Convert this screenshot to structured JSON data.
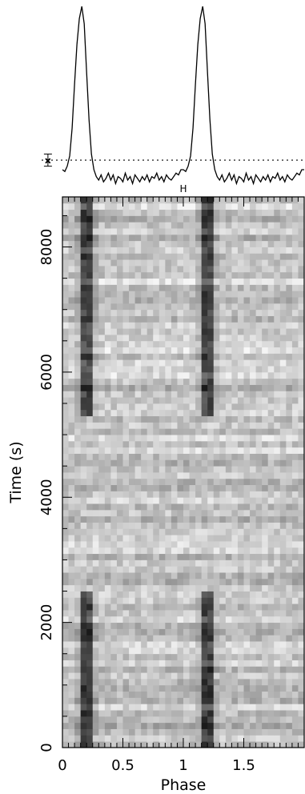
{
  "chart_data": [
    {
      "type": "line",
      "title": "",
      "description_of_axes": "",
      "x_range": [
        0,
        2
      ],
      "series": [
        {
          "x": [
            0.0,
            0.02,
            0.04,
            0.06,
            0.08,
            0.1,
            0.12,
            0.14,
            0.16,
            0.18,
            0.2,
            0.22,
            0.24,
            0.26,
            0.28,
            0.3,
            0.32,
            0.34,
            0.36,
            0.38,
            0.4,
            0.42,
            0.44,
            0.46,
            0.48,
            0.5,
            0.52,
            0.54,
            0.56,
            0.58,
            0.6,
            0.62,
            0.64,
            0.66,
            0.68,
            0.7,
            0.72,
            0.74,
            0.76,
            0.78,
            0.8,
            0.82,
            0.84,
            0.86,
            0.88,
            0.9,
            0.92,
            0.94,
            0.96,
            0.98,
            1.0,
            1.02,
            1.04,
            1.06,
            1.08,
            1.1,
            1.12,
            1.14,
            1.16,
            1.18,
            1.2,
            1.22,
            1.24,
            1.26,
            1.28,
            1.3,
            1.32,
            1.34,
            1.36,
            1.38,
            1.4,
            1.42,
            1.44,
            1.46,
            1.48,
            1.5,
            1.52,
            1.54,
            1.56,
            1.58,
            1.6,
            1.62,
            1.64,
            1.66,
            1.68,
            1.7,
            1.72,
            1.74,
            1.76,
            1.78,
            1.8,
            1.82,
            1.84,
            1.86,
            1.88,
            1.9,
            1.92,
            1.94,
            1.96,
            1.98,
            2.0
          ],
          "y": [
            0.06,
            0.05,
            0.08,
            0.14,
            0.3,
            0.55,
            0.78,
            0.93,
            1.0,
            0.9,
            0.62,
            0.35,
            0.15,
            0.06,
            0.02,
            0.0,
            0.03,
            -0.01,
            0.01,
            0.04,
            0.0,
            0.03,
            -0.02,
            0.02,
            0.01,
            -0.01,
            0.04,
            0.0,
            0.02,
            -0.02,
            0.03,
            0.01,
            -0.01,
            0.02,
            0.0,
            0.03,
            -0.01,
            0.02,
            0.01,
            0.04,
            0.0,
            0.02,
            -0.01,
            0.03,
            0.01,
            0.0,
            0.02,
            0.04,
            0.03,
            0.06,
            0.06,
            0.05,
            0.08,
            0.14,
            0.3,
            0.55,
            0.78,
            0.93,
            1.0,
            0.9,
            0.62,
            0.35,
            0.15,
            0.06,
            0.02,
            0.0,
            0.03,
            -0.01,
            0.01,
            0.04,
            0.0,
            0.03,
            -0.02,
            0.02,
            0.01,
            -0.01,
            0.04,
            0.0,
            0.02,
            -0.02,
            0.03,
            0.01,
            -0.01,
            0.02,
            0.0,
            0.03,
            -0.01,
            0.02,
            0.01,
            0.04,
            0.0,
            0.02,
            -0.01,
            0.03,
            0.01,
            0.0,
            0.02,
            0.04,
            0.03,
            0.06,
            0.06
          ]
        }
      ],
      "reference_line": {
        "y": 0.115,
        "style": "dotted"
      },
      "error_bar": {
        "x": -0.12,
        "y": 0.115,
        "half_height": 0.035
      },
      "colors": {
        "line": "#000000"
      }
    },
    {
      "type": "heatmap",
      "title": "",
      "xlabel": "Phase",
      "ylabel": "Time (s)",
      "xlim": [
        0,
        2
      ],
      "ylim": [
        0,
        8800
      ],
      "x_ticks": [
        0,
        0.5,
        1,
        1.5
      ],
      "x_tick_labels": [
        "0",
        "0.5",
        "1",
        "1.5"
      ],
      "y_ticks": [
        0,
        2000,
        4000,
        6000,
        8000
      ],
      "y_tick_labels": [
        "0",
        "2000",
        "4000",
        "6000",
        "8000"
      ],
      "marker_label": "H",
      "marker_x": 1.0,
      "pulse_phases": [
        0.2,
        1.2
      ],
      "pulse_on_intervals": [
        [
          0,
          2500
        ],
        [
          5300,
          8800
        ]
      ],
      "phase_bins": 40,
      "time_bins": 88,
      "colors": {
        "low": "#f8f8f8",
        "high": "#1a1a1a"
      }
    }
  ]
}
